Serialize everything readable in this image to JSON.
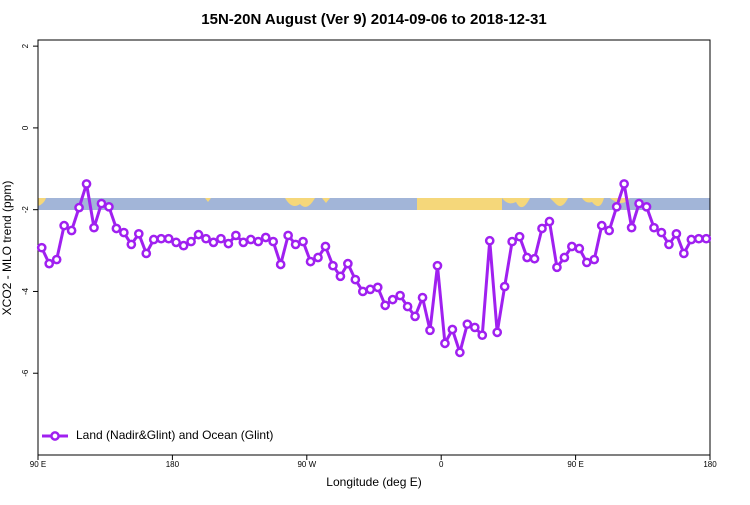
{
  "chart_data": {
    "type": "line",
    "title": "15N-20N August (Ver 9)   2014-09-06 to 2018-12-31",
    "x_label": "Longitude (deg E)",
    "y_label": "XCO2 - MLO trend (ppm)",
    "x": [
      92.5,
      97.5,
      102.5,
      107.5,
      112.5,
      117.5,
      122.5,
      127.5,
      132.5,
      137.5,
      142.5,
      147.5,
      152.5,
      157.5,
      162.5,
      167.5,
      172.5,
      177.5,
      182.5,
      187.5,
      192.5,
      197.5,
      202.5,
      207.5,
      212.5,
      217.5,
      222.5,
      227.5,
      232.5,
      237.5,
      242.5,
      247.5,
      252.5,
      257.5,
      262.5,
      267.5,
      272.5,
      277.5,
      282.5,
      287.5,
      292.5,
      297.5,
      302.5,
      307.5,
      312.5,
      317.5,
      322.5,
      327.5,
      332.5,
      337.5,
      342.5,
      347.5,
      352.5,
      357.5,
      362.5,
      367.5,
      372.5,
      377.5,
      382.5,
      387.5,
      392.5,
      397.5,
      402.5,
      407.5,
      412.5,
      417.5,
      422.5,
      427.5,
      432.5,
      437.5,
      442.5,
      447.5,
      452.5,
      457.5,
      462.5,
      467.5,
      472.5,
      477.5,
      482.5,
      487.5,
      492.5,
      497.5,
      502.5,
      507.5,
      512.5,
      517.5,
      522.5,
      527.5,
      532.5,
      537.5
    ],
    "series": [
      {
        "name": "Land (Nadir&Glint) and Ocean (Glint)",
        "color": "#a020f0",
        "values": [
          -2.93,
          -3.32,
          -3.22,
          -2.39,
          -2.51,
          -1.95,
          -1.37,
          -2.44,
          -1.85,
          -1.93,
          -2.46,
          -2.56,
          -2.85,
          -2.59,
          -3.07,
          -2.73,
          -2.71,
          -2.71,
          -2.8,
          -2.88,
          -2.78,
          -2.61,
          -2.71,
          -2.8,
          -2.71,
          -2.83,
          -2.63,
          -2.8,
          -2.73,
          -2.78,
          -2.68,
          -2.78,
          -3.34,
          -2.63,
          -2.85,
          -2.78,
          -3.27,
          -3.17,
          -2.9,
          -3.37,
          -3.63,
          -3.32,
          -3.71,
          -4.0,
          -3.95,
          -3.9,
          -4.34,
          -4.2,
          -4.1,
          -4.37,
          -4.61,
          -4.15,
          -4.95,
          -3.37,
          -5.27,
          -4.93,
          -5.49,
          -4.8,
          -4.88,
          -5.07,
          -2.76,
          -5.0,
          -3.88,
          -2.78,
          -2.66,
          -3.17,
          -3.2,
          -2.46,
          -2.29,
          -3.41,
          -3.17,
          -2.9,
          -2.95,
          -3.29,
          -3.22,
          -2.39,
          -2.51,
          -1.93,
          -1.37,
          -2.44,
          -1.85,
          -1.93,
          -2.44,
          -2.56,
          -2.85,
          -2.59,
          -3.07,
          -2.73,
          -2.71,
          -2.71
        ]
      }
    ],
    "xlim": [
      90,
      540
    ],
    "xticks": [
      {
        "value": 90,
        "label": "90 E"
      },
      {
        "value": 180,
        "label": "180"
      },
      {
        "value": 270,
        "label": "90 W"
      },
      {
        "value": 360,
        "label": "0"
      },
      {
        "value": 450,
        "label": "90 E"
      },
      {
        "value": 540,
        "label": "180"
      }
    ],
    "ylim": [
      -8,
      2.15
    ],
    "yticks": [
      -6,
      -4,
      -2,
      0,
      2
    ],
    "legend": "bottom-left"
  }
}
